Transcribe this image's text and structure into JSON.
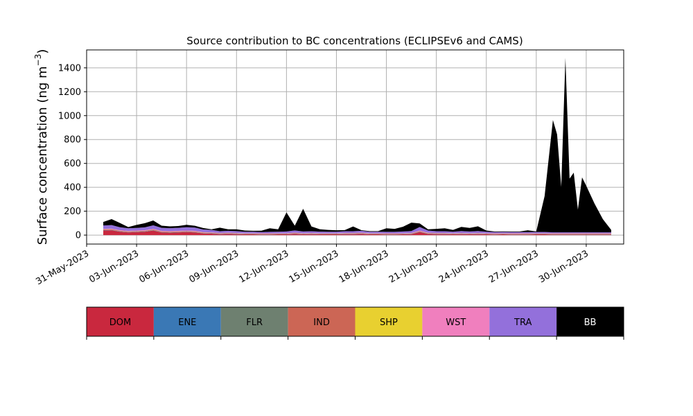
{
  "chart_data": {
    "type": "area",
    "title": "Source contribution to BC concentrations (ECLIPSEv6 and CAMS)",
    "ylabel_main": "Surface concentration (ng m",
    "ylabel_exp": "−3",
    "ylabel_close": ")",
    "xlabel": "",
    "ylim": [
      -75,
      1550
    ],
    "xlim": [
      "2023-05-31T00:00",
      "2023-07-02T06:00"
    ],
    "yticks": [
      0,
      200,
      400,
      600,
      800,
      1000,
      1200,
      1400
    ],
    "ytick_labels": [
      "0",
      "200",
      "400",
      "600",
      "800",
      "1000",
      "1200",
      "1400"
    ],
    "xticks": [
      "2023-05-31",
      "2023-06-03",
      "2023-06-06",
      "2023-06-09",
      "2023-06-12",
      "2023-06-15",
      "2023-06-18",
      "2023-06-21",
      "2023-06-24",
      "2023-06-27",
      "2023-06-30"
    ],
    "xtick_labels": [
      "31-May-2023",
      "03-Jun-2023",
      "06-Jun-2023",
      "09-Jun-2023",
      "12-Jun-2023",
      "15-Jun-2023",
      "18-Jun-2023",
      "21-Jun-2023",
      "24-Jun-2023",
      "27-Jun-2023",
      "30-Jun-2023"
    ],
    "grid": true,
    "stacked": true,
    "dates": [
      "2023-06-01T00:00",
      "2023-06-01T12:00",
      "2023-06-02T00:00",
      "2023-06-02T12:00",
      "2023-06-03T00:00",
      "2023-06-03T12:00",
      "2023-06-04T00:00",
      "2023-06-04T12:00",
      "2023-06-05T00:00",
      "2023-06-05T12:00",
      "2023-06-06T00:00",
      "2023-06-06T12:00",
      "2023-06-07T00:00",
      "2023-06-07T12:00",
      "2023-06-08T00:00",
      "2023-06-08T12:00",
      "2023-06-09T00:00",
      "2023-06-09T12:00",
      "2023-06-10T00:00",
      "2023-06-10T12:00",
      "2023-06-11T00:00",
      "2023-06-11T12:00",
      "2023-06-12T00:00",
      "2023-06-12T12:00",
      "2023-06-13T00:00",
      "2023-06-13T12:00",
      "2023-06-14T00:00",
      "2023-06-14T12:00",
      "2023-06-15T00:00",
      "2023-06-15T12:00",
      "2023-06-16T00:00",
      "2023-06-16T12:00",
      "2023-06-17T00:00",
      "2023-06-17T12:00",
      "2023-06-18T00:00",
      "2023-06-18T12:00",
      "2023-06-19T00:00",
      "2023-06-19T12:00",
      "2023-06-20T00:00",
      "2023-06-20T12:00",
      "2023-06-21T00:00",
      "2023-06-21T12:00",
      "2023-06-22T00:00",
      "2023-06-22T12:00",
      "2023-06-23T00:00",
      "2023-06-23T12:00",
      "2023-06-24T00:00",
      "2023-06-24T12:00",
      "2023-06-25T00:00",
      "2023-06-25T12:00",
      "2023-06-26T00:00",
      "2023-06-26T12:00",
      "2023-06-27T00:00",
      "2023-06-27T12:00",
      "2023-06-28T00:00",
      "2023-06-28T06:00",
      "2023-06-28T12:00",
      "2023-06-28T18:00",
      "2023-06-29T00:00",
      "2023-06-29T06:00",
      "2023-06-29T12:00",
      "2023-06-29T18:00",
      "2023-06-30T00:00",
      "2023-06-30T12:00",
      "2023-07-01T00:00",
      "2023-07-01T12:00"
    ],
    "series": [
      {
        "name": "DOM",
        "color": "#c9283e",
        "values": [
          38,
          40,
          28,
          22,
          25,
          28,
          38,
          22,
          20,
          22,
          25,
          22,
          14,
          12,
          8,
          10,
          8,
          6,
          6,
          5,
          5,
          6,
          6,
          10,
          6,
          8,
          6,
          6,
          6,
          8,
          8,
          10,
          6,
          6,
          5,
          5,
          6,
          8,
          25,
          10,
          8,
          8,
          6,
          8,
          6,
          8,
          6,
          5,
          6,
          5,
          5,
          5,
          6,
          6,
          5,
          5,
          5,
          5,
          5,
          5,
          5,
          5,
          5,
          5,
          5,
          5
        ]
      },
      {
        "name": "ENE",
        "color": "#3a78b5",
        "values": [
          2,
          2,
          2,
          2,
          2,
          2,
          2,
          2,
          2,
          2,
          2,
          2,
          2,
          2,
          2,
          2,
          2,
          2,
          2,
          2,
          2,
          2,
          2,
          2,
          2,
          2,
          2,
          2,
          2,
          2,
          2,
          2,
          2,
          2,
          2,
          2,
          2,
          2,
          2,
          2,
          2,
          2,
          2,
          2,
          2,
          2,
          2,
          2,
          2,
          2,
          2,
          2,
          2,
          2,
          2,
          2,
          2,
          2,
          2,
          2,
          2,
          2,
          2,
          2,
          2,
          2
        ]
      },
      {
        "name": "FLR",
        "color": "#6e8070",
        "values": [
          1,
          1,
          1,
          1,
          1,
          1,
          1,
          1,
          1,
          1,
          1,
          1,
          1,
          1,
          1,
          1,
          1,
          1,
          1,
          1,
          1,
          1,
          1,
          1,
          1,
          1,
          1,
          1,
          1,
          1,
          1,
          1,
          1,
          1,
          1,
          1,
          1,
          1,
          1,
          1,
          1,
          1,
          1,
          1,
          1,
          1,
          1,
          1,
          1,
          1,
          1,
          1,
          1,
          1,
          1,
          1,
          1,
          1,
          1,
          1,
          1,
          1,
          1,
          1,
          1,
          1
        ]
      },
      {
        "name": "IND",
        "color": "#cc6655",
        "values": [
          6,
          6,
          5,
          5,
          5,
          5,
          6,
          5,
          5,
          5,
          5,
          5,
          4,
          4,
          3,
          3,
          3,
          3,
          3,
          3,
          3,
          3,
          3,
          4,
          3,
          3,
          3,
          3,
          3,
          3,
          3,
          3,
          3,
          3,
          3,
          3,
          3,
          3,
          5,
          3,
          3,
          3,
          3,
          3,
          3,
          3,
          3,
          3,
          3,
          3,
          3,
          3,
          3,
          3,
          3,
          3,
          3,
          3,
          3,
          3,
          3,
          3,
          3,
          3,
          3,
          3
        ]
      },
      {
        "name": "SHP",
        "color": "#e8d030",
        "values": [
          1,
          1,
          1,
          1,
          1,
          1,
          1,
          1,
          1,
          1,
          1,
          1,
          1,
          1,
          1,
          1,
          1,
          1,
          1,
          1,
          1,
          1,
          1,
          1,
          1,
          1,
          1,
          1,
          1,
          1,
          1,
          1,
          1,
          1,
          1,
          1,
          1,
          1,
          1,
          1,
          1,
          1,
          1,
          1,
          1,
          1,
          1,
          1,
          1,
          1,
          1,
          1,
          1,
          1,
          1,
          1,
          1,
          1,
          1,
          1,
          1,
          1,
          1,
          1,
          1,
          1
        ]
      },
      {
        "name": "WST",
        "color": "#f07fbe",
        "values": [
          4,
          4,
          4,
          4,
          4,
          4,
          4,
          4,
          4,
          4,
          4,
          4,
          3,
          3,
          3,
          3,
          3,
          3,
          3,
          3,
          3,
          3,
          3,
          3,
          3,
          3,
          3,
          3,
          3,
          3,
          3,
          3,
          3,
          3,
          3,
          3,
          3,
          3,
          4,
          3,
          3,
          3,
          3,
          3,
          3,
          3,
          3,
          3,
          3,
          3,
          3,
          3,
          3,
          3,
          3,
          3,
          3,
          3,
          3,
          3,
          3,
          3,
          3,
          3,
          3,
          3
        ]
      },
      {
        "name": "TRA",
        "color": "#9370db",
        "values": [
          28,
          30,
          25,
          22,
          22,
          24,
          30,
          26,
          25,
          26,
          28,
          28,
          22,
          20,
          14,
          16,
          15,
          12,
          12,
          10,
          12,
          12,
          14,
          18,
          14,
          14,
          13,
          12,
          12,
          14,
          14,
          16,
          12,
          12,
          12,
          12,
          14,
          16,
          30,
          18,
          14,
          14,
          12,
          16,
          14,
          16,
          12,
          10,
          10,
          10,
          10,
          10,
          10,
          10,
          8,
          8,
          8,
          8,
          8,
          8,
          8,
          8,
          8,
          8,
          8,
          8
        ]
      },
      {
        "name": "BB",
        "color": "#000000",
        "values": [
          30,
          50,
          35,
          10,
          25,
          35,
          40,
          18,
          15,
          15,
          20,
          15,
          12,
          5,
          30,
          12,
          15,
          10,
          8,
          12,
          30,
          20,
          160,
          40,
          190,
          40,
          20,
          15,
          12,
          10,
          40,
          5,
          5,
          5,
          30,
          25,
          40,
          70,
          30,
          10,
          20,
          25,
          15,
          35,
          30,
          40,
          10,
          5,
          5,
          5,
          5,
          15,
          5,
          300,
          940,
          820,
          380,
          1460,
          450,
          500,
          190,
          460,
          390,
          240,
          110,
          20
        ]
      }
    ]
  },
  "legend": {
    "items": [
      {
        "name": "DOM",
        "color": "#c9283e",
        "text_color": "#000000"
      },
      {
        "name": "ENE",
        "color": "#3a78b5",
        "text_color": "#000000"
      },
      {
        "name": "FLR",
        "color": "#6e8070",
        "text_color": "#000000"
      },
      {
        "name": "IND",
        "color": "#cc6655",
        "text_color": "#000000"
      },
      {
        "name": "SHP",
        "color": "#e8d030",
        "text_color": "#000000"
      },
      {
        "name": "WST",
        "color": "#f07fbe",
        "text_color": "#000000"
      },
      {
        "name": "TRA",
        "color": "#9370db",
        "text_color": "#000000"
      },
      {
        "name": "BB",
        "color": "#000000",
        "text_color": "#ffffff"
      }
    ]
  }
}
